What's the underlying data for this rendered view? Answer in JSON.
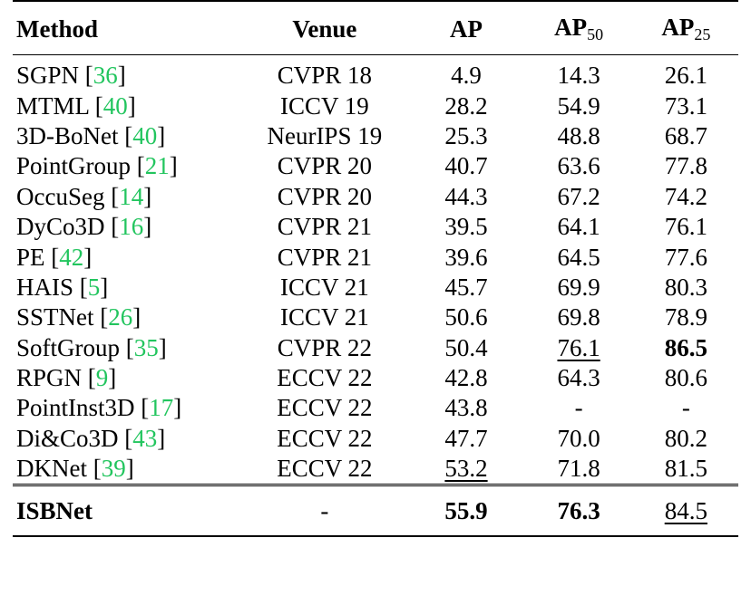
{
  "header": {
    "method": "Method",
    "venue": "Venue",
    "ap": "AP",
    "ap50_main": "AP",
    "ap50_sub": "50",
    "ap25_main": "AP",
    "ap25_sub": "25"
  },
  "rows": [
    {
      "method": "SGPN",
      "cite": "36",
      "venue": "CVPR 18",
      "ap": "4.9",
      "ap50": "14.3",
      "ap25": "26.1"
    },
    {
      "method": "MTML",
      "cite": "40",
      "venue": "ICCV 19",
      "ap": "28.2",
      "ap50": "54.9",
      "ap25": "73.1"
    },
    {
      "method": "3D-BoNet",
      "cite": "40",
      "venue": "NeurIPS 19",
      "ap": "25.3",
      "ap50": "48.8",
      "ap25": "68.7"
    },
    {
      "method": "PointGroup",
      "cite": "21",
      "venue": "CVPR 20",
      "ap": "40.7",
      "ap50": "63.6",
      "ap25": "77.8"
    },
    {
      "method": "OccuSeg",
      "cite": "14",
      "venue": "CVPR 20",
      "ap": "44.3",
      "ap50": "67.2",
      "ap25": "74.2"
    },
    {
      "method": "DyCo3D",
      "cite": "16",
      "venue": "CVPR 21",
      "ap": "39.5",
      "ap50": "64.1",
      "ap25": "76.1"
    },
    {
      "method": "PE",
      "cite": "42",
      "venue": "CVPR 21",
      "ap": "39.6",
      "ap50": "64.5",
      "ap25": "77.6"
    },
    {
      "method": "HAIS",
      "cite": "5",
      "venue": "ICCV 21",
      "ap": "45.7",
      "ap50": "69.9",
      "ap25": "80.3"
    },
    {
      "method": "SSTNet",
      "cite": "26",
      "venue": "ICCV 21",
      "ap": "50.6",
      "ap50": "69.8",
      "ap25": "78.9"
    },
    {
      "method": "SoftGroup",
      "cite": "35",
      "venue": "CVPR 22",
      "ap": "50.4",
      "ap50": "76.1",
      "ap25": "86.5"
    },
    {
      "method": "RPGN",
      "cite": "9",
      "venue": "ECCV 22",
      "ap": "42.8",
      "ap50": "64.3",
      "ap25": "80.6"
    },
    {
      "method": "PointInst3D",
      "cite": "17",
      "venue": "ECCV 22",
      "ap": "43.8",
      "ap50": "-",
      "ap25": "-"
    },
    {
      "method": "Di&Co3D",
      "cite": "43",
      "venue": "ECCV 22",
      "ap": "47.7",
      "ap50": "70.0",
      "ap25": "80.2"
    },
    {
      "method": "DKNet",
      "cite": "39",
      "venue": "ECCV 22",
      "ap": "53.2",
      "ap50": "71.8",
      "ap25": "81.5"
    }
  ],
  "final": {
    "method": "ISBNet",
    "venue": "-",
    "ap": "55.9",
    "ap50": "76.3",
    "ap25": "84.5"
  },
  "colors": {
    "citation": "#22c55e"
  }
}
